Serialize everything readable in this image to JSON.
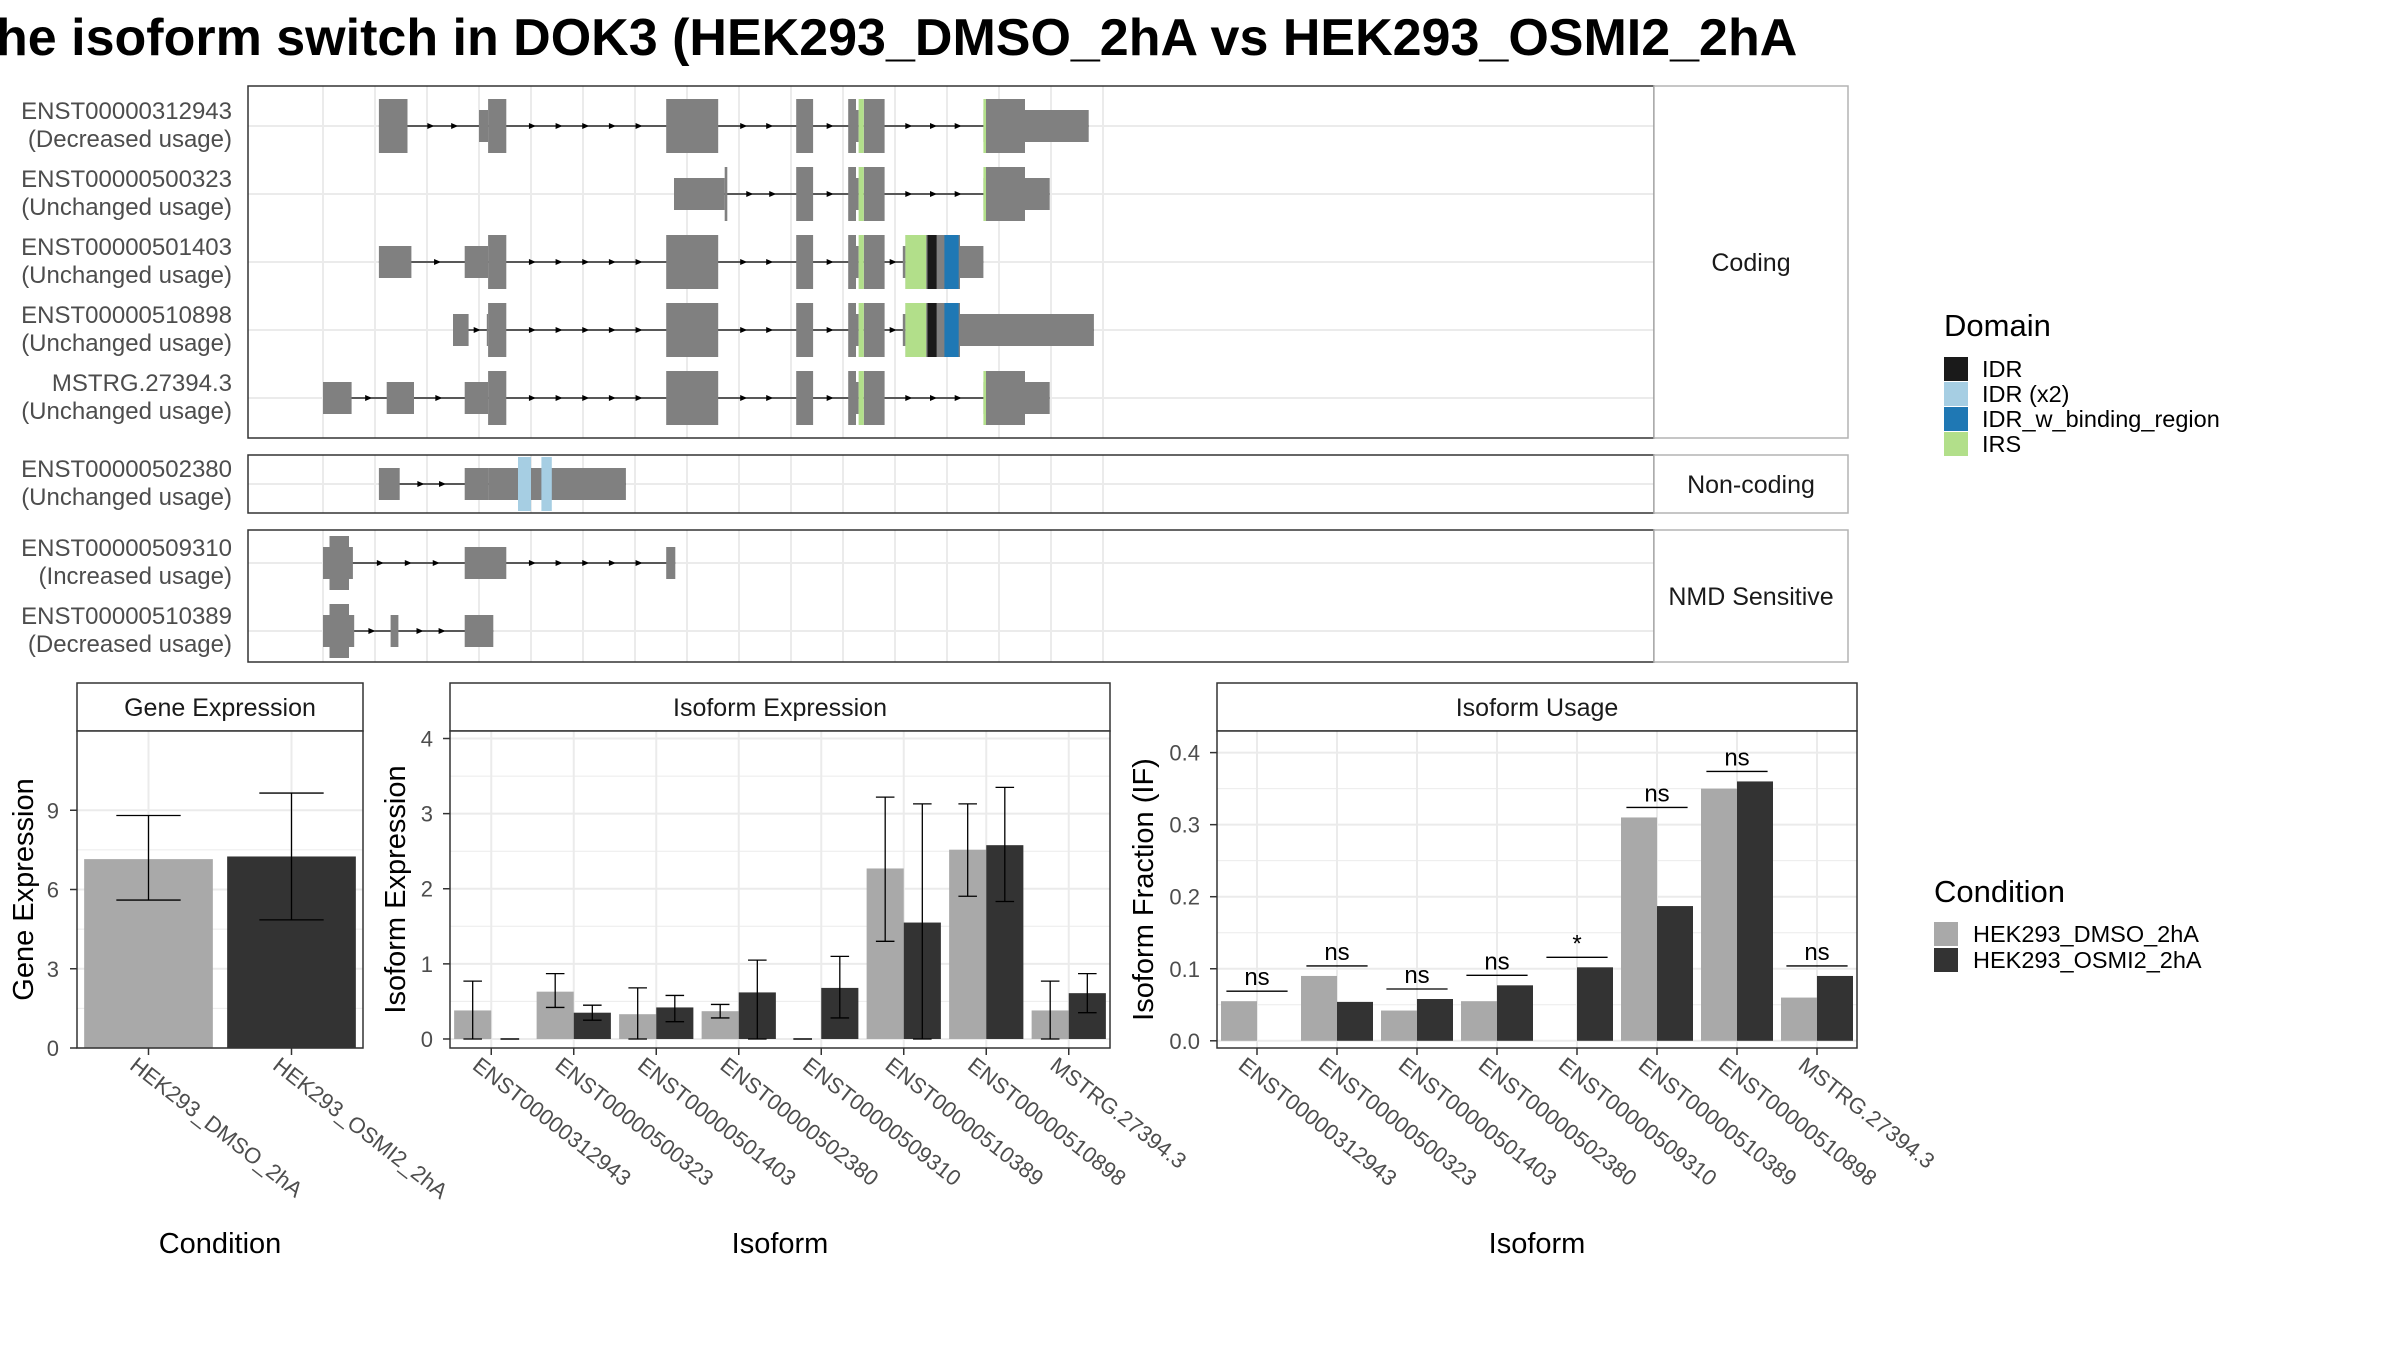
{
  "title": "he isoform switch in DOK3 (HEK293_DMSO_2hA vs HEK293_OSMI2_2hA",
  "colors": {
    "exon": "#808080",
    "IDR": "#1a1a1a",
    "IDR (x2)": "#a6cee3",
    "IDR_w_binding_region": "#1f78b4",
    "IRS": "#b2df8a",
    "cond1": "#a9a9a9",
    "cond2": "#333333",
    "grid": "#ebebeb",
    "panel_border": "#333333"
  },
  "domain_legend": {
    "title": "Domain",
    "items": [
      "IDR",
      "IDR (x2)",
      "IDR_w_binding_region",
      "IRS"
    ]
  },
  "condition_legend": {
    "title": "Condition",
    "items": [
      "HEK293_DMSO_2hA",
      "HEK293_OSMI2_2hA"
    ]
  },
  "transcript_groups": [
    {
      "label": "Coding",
      "transcripts": [
        {
          "id": "ENST00000312943",
          "usage": "(Decreased usage)",
          "exons": [
            [
              203,
              225
            ],
            [
              280,
              287,
              "t"
            ],
            [
              287,
              301
            ],
            [
              424,
              464
            ],
            [
              524,
              537
            ],
            [
              564,
              570
            ],
            [
              570,
              572,
              "t"
            ],
            [
              576,
              592
            ],
            [
              668,
              670,
              "t"
            ],
            [
              670,
              700
            ],
            [
              700,
              749,
              "t"
            ]
          ],
          "domains": [
            [
              572,
              576,
              "IRS"
            ],
            [
              668,
              670,
              "IRS"
            ]
          ]
        },
        {
          "id": "ENST00000500323",
          "usage": "(Unchanged usage)",
          "exons": [
            [
              430,
              469,
              "t"
            ],
            [
              469,
              471
            ],
            [
              524,
              537
            ],
            [
              564,
              570
            ],
            [
              570,
              572,
              "t"
            ],
            [
              576,
              592
            ],
            [
              668,
              670,
              "t"
            ],
            [
              670,
              700
            ],
            [
              700,
              719,
              "t"
            ]
          ],
          "domains": [
            [
              572,
              576,
              "IRS"
            ],
            [
              668,
              670,
              "IRS"
            ]
          ]
        },
        {
          "id": "ENST00000501403",
          "usage": "(Unchanged usage)",
          "exons": [
            [
              203,
              228,
              "t"
            ],
            [
              269,
              287,
              "t"
            ],
            [
              287,
              301
            ],
            [
              424,
              464
            ],
            [
              524,
              537
            ],
            [
              564,
              570
            ],
            [
              570,
              572,
              "t"
            ],
            [
              576,
              592
            ],
            [
              606,
              608,
              "t"
            ],
            [
              608,
              650
            ],
            [
              650,
              668,
              "t"
            ]
          ],
          "domains": [
            [
              572,
              576,
              "IRS"
            ],
            [
              608,
              624,
              "IRS"
            ],
            [
              625,
              632,
              "IDR"
            ],
            [
              638,
              649,
              "IDR_w_binding_region"
            ]
          ]
        },
        {
          "id": "ENST00000510898",
          "usage": "(Unchanged usage)",
          "exons": [
            [
              260,
              272,
              "t"
            ],
            [
              286,
              287,
              "t"
            ],
            [
              287,
              301
            ],
            [
              424,
              464
            ],
            [
              524,
              537
            ],
            [
              564,
              570
            ],
            [
              570,
              572,
              "t"
            ],
            [
              576,
              592
            ],
            [
              606,
              608,
              "t"
            ],
            [
              608,
              650
            ],
            [
              650,
              753,
              "t"
            ]
          ],
          "domains": [
            [
              572,
              576,
              "IRS"
            ],
            [
              608,
              624,
              "IRS"
            ],
            [
              625,
              632,
              "IDR"
            ],
            [
              638,
              649,
              "IDR_w_binding_region"
            ]
          ]
        },
        {
          "id": "MSTRG.27394.3",
          "usage": "(Unchanged usage)",
          "exons": [
            [
              160,
              182,
              "t"
            ],
            [
              209,
              230,
              "t"
            ],
            [
              269,
              287,
              "t"
            ],
            [
              287,
              301
            ],
            [
              424,
              464
            ],
            [
              524,
              537
            ],
            [
              564,
              570
            ],
            [
              570,
              572,
              "t"
            ],
            [
              576,
              592
            ],
            [
              668,
              670,
              "t"
            ],
            [
              670,
              700
            ],
            [
              700,
              719,
              "t"
            ]
          ],
          "domains": [
            [
              572,
              576,
              "IRS"
            ],
            [
              668,
              670,
              "IRS"
            ]
          ]
        }
      ]
    },
    {
      "label": "Non-coding",
      "transcripts": [
        {
          "id": "ENST00000502380",
          "usage": "(Unchanged usage)",
          "exons": [
            [
              203,
              219,
              "t"
            ],
            [
              269,
              287,
              "t"
            ],
            [
              287,
              393,
              "t"
            ]
          ],
          "domains": [
            [
              310,
              320,
              "IDR (x2)"
            ],
            [
              328,
              336,
              "IDR (x2)"
            ]
          ]
        }
      ]
    },
    {
      "label": "NMD Sensitive",
      "transcripts": [
        {
          "id": "ENST00000509310",
          "usage": "(Increased usage)",
          "exons": [
            [
              160,
              165,
              "t"
            ],
            [
              165,
              180
            ],
            [
              180,
              183,
              "t"
            ],
            [
              269,
              301,
              "t"
            ],
            [
              424,
              431,
              "t"
            ]
          ],
          "domains": []
        },
        {
          "id": "ENST00000510389",
          "usage": "(Decreased usage)",
          "exons": [
            [
              160,
              165,
              "t"
            ],
            [
              165,
              180
            ],
            [
              180,
              184,
              "t"
            ],
            [
              212,
              218,
              "t"
            ],
            [
              269,
              291,
              "t"
            ]
          ],
          "domains": []
        }
      ]
    }
  ],
  "chart_data": [
    {
      "type": "bar",
      "title": "Gene Expression",
      "xlabel": "Condition",
      "ylabel": "Gene Expression",
      "ylim": [
        0,
        12
      ],
      "yticks": [
        0,
        3,
        6,
        9
      ],
      "categories": [
        "HEK293_DMSO_2hA",
        "HEK293_OSMI2_2hA"
      ],
      "values": [
        7.15,
        7.25
      ],
      "errors": [
        [
          5.6,
          8.8
        ],
        [
          4.85,
          9.65
        ]
      ]
    },
    {
      "type": "bar",
      "title": "Isoform Expression",
      "xlabel": "Isoform",
      "ylabel": "Isoform Expression",
      "ylim": [
        -0.12,
        4.1
      ],
      "yticks": [
        0,
        1,
        2,
        3,
        4
      ],
      "categories": [
        "ENST00000312943",
        "ENST00000500323",
        "ENST00000501403",
        "ENST00000502380",
        "ENST00000509310",
        "ENST00000510389",
        "ENST00000510898",
        "MSTRG.27394.3"
      ],
      "series": [
        {
          "name": "HEK293_DMSO_2hA",
          "values": [
            0.38,
            0.63,
            0.33,
            0.37,
            0.0,
            2.27,
            2.52,
            0.38
          ],
          "errors": [
            [
              0,
              0.77
            ],
            [
              0.42,
              0.87
            ],
            [
              0,
              0.68
            ],
            [
              0.28,
              0.46
            ],
            [
              0,
              0
            ],
            [
              1.3,
              3.22
            ],
            [
              1.9,
              3.13
            ],
            [
              0,
              0.77
            ]
          ]
        },
        {
          "name": "HEK293_OSMI2_2hA",
          "values": [
            0.0,
            0.35,
            0.42,
            0.62,
            0.68,
            1.55,
            2.58,
            0.61
          ],
          "errors": [
            [
              0,
              0
            ],
            [
              0.25,
              0.45
            ],
            [
              0.23,
              0.58
            ],
            [
              0,
              1.05
            ],
            [
              0.28,
              1.1
            ],
            [
              0,
              3.13
            ],
            [
              1.83,
              3.35
            ],
            [
              0.35,
              0.87
            ]
          ]
        }
      ]
    },
    {
      "type": "bar",
      "title": "Isoform Usage",
      "xlabel": "Isoform",
      "ylabel": "Isoform Fraction (IF)",
      "ylim": [
        -0.01,
        0.43
      ],
      "yticks": [
        "0.0",
        "0.1",
        "0.2",
        "0.3",
        "0.4"
      ],
      "categories": [
        "ENST00000312943",
        "ENST00000500323",
        "ENST00000501403",
        "ENST00000502380",
        "ENST00000509310",
        "ENST00000510389",
        "ENST00000510898",
        "MSTRG.27394.3"
      ],
      "series": [
        {
          "name": "HEK293_DMSO_2hA",
          "values": [
            0.055,
            0.09,
            0.042,
            0.055,
            0.0,
            0.31,
            0.35,
            0.06
          ]
        },
        {
          "name": "HEK293_OSMI2_2hA",
          "values": [
            0.0,
            0.054,
            0.058,
            0.077,
            0.102,
            0.187,
            0.36,
            0.09
          ]
        }
      ],
      "significance": [
        "ns",
        "ns",
        "ns",
        "ns",
        "*",
        "ns",
        "ns",
        "ns"
      ]
    }
  ]
}
